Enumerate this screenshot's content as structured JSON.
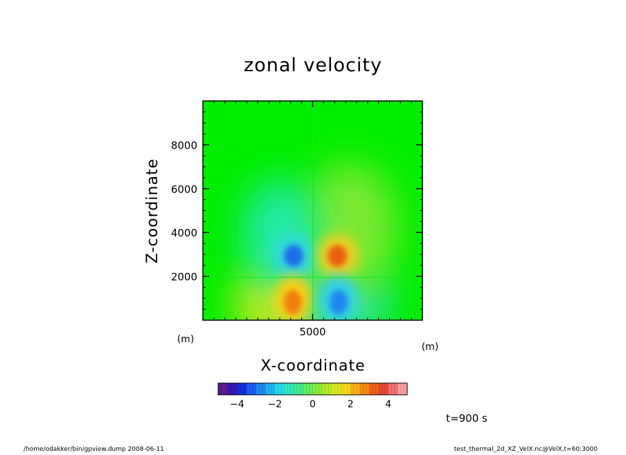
{
  "chart_data": {
    "type": "heatmap",
    "title": "zonal velocity",
    "xlabel": "X-coordinate",
    "ylabel": "Z-coordinate",
    "x_unit": "(m)",
    "y_unit": "(m)",
    "xlim": [
      0,
      10000
    ],
    "ylim": [
      0,
      10000
    ],
    "x_ticks": [
      5000
    ],
    "y_ticks": [
      2000,
      4000,
      6000,
      8000
    ],
    "colorbar": {
      "range": [
        -5,
        5
      ],
      "ticks": [
        -4,
        -2,
        0,
        2,
        4
      ],
      "colors": [
        "#5a1a8c",
        "#3a16b8",
        "#1530d8",
        "#1a5cf0",
        "#1e88f0",
        "#20b4f0",
        "#28d8e8",
        "#30e8c0",
        "#40ec90",
        "#60ee60",
        "#8cee38",
        "#b4ec28",
        "#dce820",
        "#f8d818",
        "#f8b014",
        "#f88810",
        "#f06018",
        "#e84830",
        "#f07070",
        "#f8a0a0"
      ]
    },
    "features": [
      {
        "sign": "negative",
        "x": 4250,
        "z": 2900,
        "peak": -3.5
      },
      {
        "sign": "positive",
        "x": 6050,
        "z": 2900,
        "peak": 3.0
      },
      {
        "sign": "positive",
        "x": 4200,
        "z": 800,
        "peak": 3.0
      },
      {
        "sign": "negative",
        "x": 6050,
        "z": 800,
        "peak": -3.0
      }
    ],
    "time_label": "t=900 s"
  },
  "footer": {
    "left": "/home/odakker/bin/gpview.dump  2008-06-11",
    "right": "test_thermal_2d_XZ_VelX.nc@VelX,t=60:3000"
  }
}
